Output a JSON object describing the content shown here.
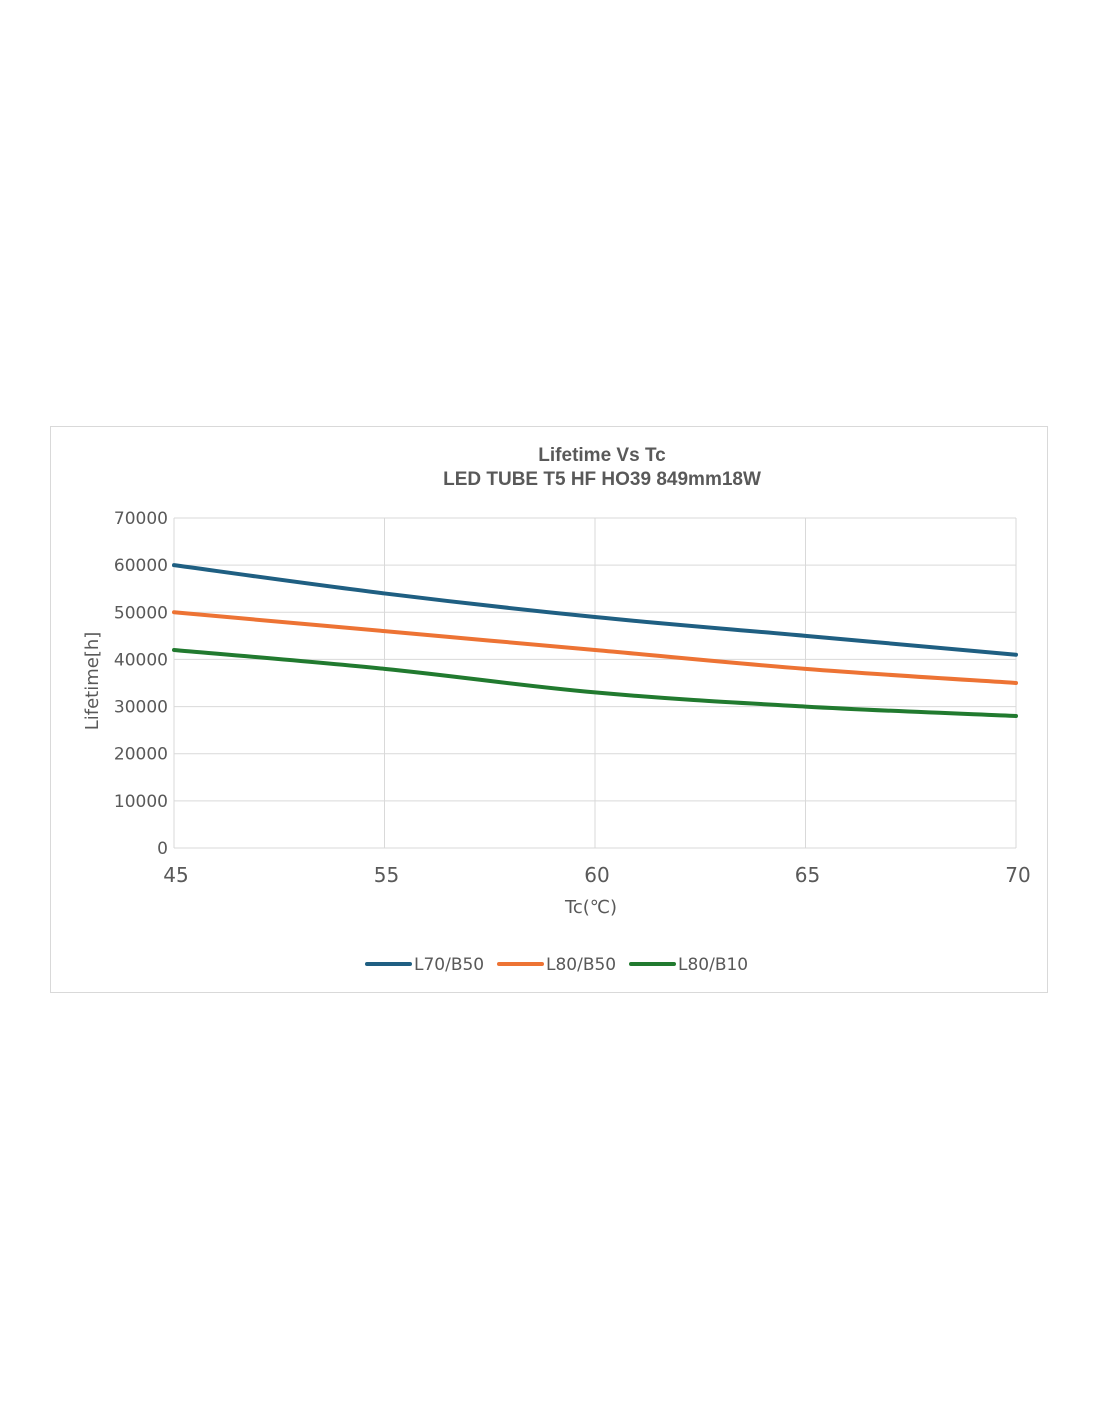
{
  "chart_data": {
    "type": "line",
    "title": "Lifetime Vs Tc",
    "subtitle": "LED TUBE T5 HF HO39  849mm18W",
    "xlabel": "Tc(℃)",
    "ylabel": "Lifetime[h]",
    "categories": [
      "45",
      "55",
      "60",
      "65",
      "70"
    ],
    "ylim": [
      0,
      70000
    ],
    "yticks": [
      "70000",
      "60000",
      "50000",
      "40000",
      "30000",
      "20000",
      "10000",
      "0"
    ],
    "grid": true,
    "legend_position": "bottom",
    "series": [
      {
        "name": "L70/B50",
        "color": "#1f5f82",
        "values": [
          60000,
          54000,
          49000,
          45000,
          41000
        ]
      },
      {
        "name": "L80/B50",
        "color": "#ed7334",
        "values": [
          50000,
          46000,
          42000,
          38000,
          35000
        ]
      },
      {
        "name": "L80/B10",
        "color": "#217a2f",
        "values": [
          42000,
          38000,
          33000,
          30000,
          28000
        ]
      }
    ]
  }
}
